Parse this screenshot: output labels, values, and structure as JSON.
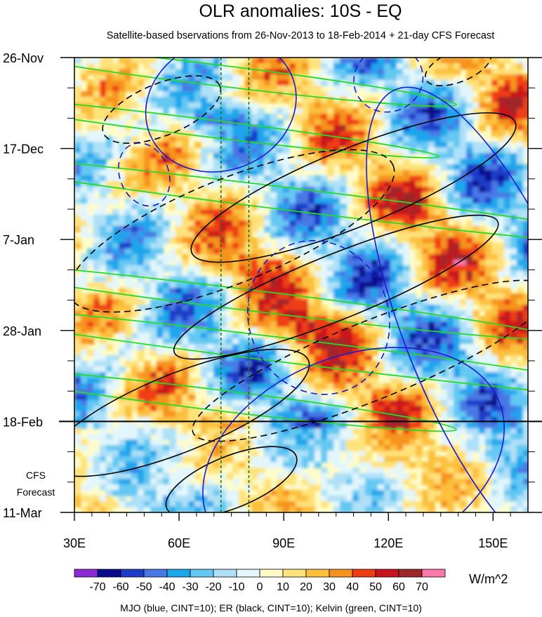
{
  "title": "OLR anomalies: 10S - EQ",
  "subtitle": "Satellite-based bservations from 26-Nov-2013 to 18-Feb-2014 + 21-day CFS Forecast",
  "forecast_label": [
    "CFS",
    "Forecast"
  ],
  "colorbar": {
    "units": "W/m^2",
    "levels": [
      "-70",
      "-60",
      "-50",
      "-40",
      "-30",
      "-20",
      "-10",
      "0",
      "10",
      "20",
      "30",
      "40",
      "50",
      "60",
      "70"
    ],
    "colors": [
      "#8b2bd6",
      "#0a0a8c",
      "#1e3cc8",
      "#4a78e6",
      "#1aa6ec",
      "#64c8f2",
      "#aee0f8",
      "#e2f6fc",
      "#fffcc8",
      "#ffe27a",
      "#fcc03c",
      "#f6931e",
      "#f03c14",
      "#c8141e",
      "#a0282c",
      "#fa78aa"
    ]
  },
  "footer": "MJO (blue, CINT=10); ER (black, CINT=10); Kelvin (green, CINT=10)",
  "chart_data": {
    "type": "heatmap",
    "x_ticks": [
      "30E",
      "60E",
      "90E",
      "120E",
      "150E"
    ],
    "x_tick_values": [
      30,
      60,
      90,
      120,
      150
    ],
    "xlim": [
      30,
      160
    ],
    "y_ticks": [
      "26-Nov",
      "17-Dec",
      "7-Jan",
      "28-Jan",
      "18-Feb",
      "11-Mar"
    ],
    "observation_end": "18-Feb",
    "dashed_vertical_lines_lon": [
      72,
      80
    ],
    "contours": {
      "mjo": [
        {
          "lon": 72,
          "time": "7-Dec",
          "a": 22,
          "b": 5,
          "dashed": false
        },
        {
          "lon": 50,
          "time": "23-Dec",
          "a": 7,
          "b": 2.5,
          "dashed": true
        },
        {
          "lon": 100,
          "time": "25-Jan",
          "a": 20,
          "b": 6,
          "dashed": true
        },
        {
          "lon": 110,
          "time": "27-Feb",
          "a": 45,
          "b": 8,
          "dashed": false
        },
        {
          "lon": 150,
          "time": "28-Jan",
          "a": 25,
          "b": 20,
          "dashed": false
        },
        {
          "lon": 120,
          "time": "1-Dec",
          "a": 10,
          "b": 2.5,
          "dashed": true
        }
      ],
      "er": [
        {
          "lon": 75,
          "time": "5-Jan",
          "a": 50,
          "b": 4,
          "dashed": true
        },
        {
          "lon": 110,
          "time": "26-Dec",
          "a": 50,
          "b": 3,
          "dashed": false
        },
        {
          "lon": 115,
          "time": "4-Feb",
          "a": 55,
          "b": 3,
          "dashed": true
        },
        {
          "lon": 60,
          "time": "16-Feb",
          "a": 40,
          "b": 3,
          "dashed": false
        },
        {
          "lon": 105,
          "time": "18-Jan",
          "a": 50,
          "b": 2.5,
          "dashed": false
        },
        {
          "lon": 55,
          "time": "8-Dec",
          "a": 18,
          "b": 2,
          "dashed": true
        },
        {
          "lon": 140,
          "time": "28-Nov",
          "a": 10,
          "b": 1.2,
          "dashed": true
        },
        {
          "lon": 75,
          "time": "4-Mar",
          "a": 20,
          "b": 2,
          "dashed": false
        }
      ],
      "kelvin": [
        {
          "lon": 70,
          "time": "30-Nov",
          "a": 70,
          "b": 1.2
        },
        {
          "lon": 65,
          "time": "12-Dec",
          "a": 70,
          "b": 1
        },
        {
          "lon": 95,
          "time": "29-Dec",
          "a": 110,
          "b": 1.3
        },
        {
          "lon": 80,
          "time": "21-Jan",
          "a": 90,
          "b": 1.2
        },
        {
          "lon": 95,
          "time": "2-Feb",
          "a": 110,
          "b": 1.4
        },
        {
          "lon": 70,
          "time": "13-Feb",
          "a": 70,
          "b": 1.2
        }
      ]
    }
  }
}
